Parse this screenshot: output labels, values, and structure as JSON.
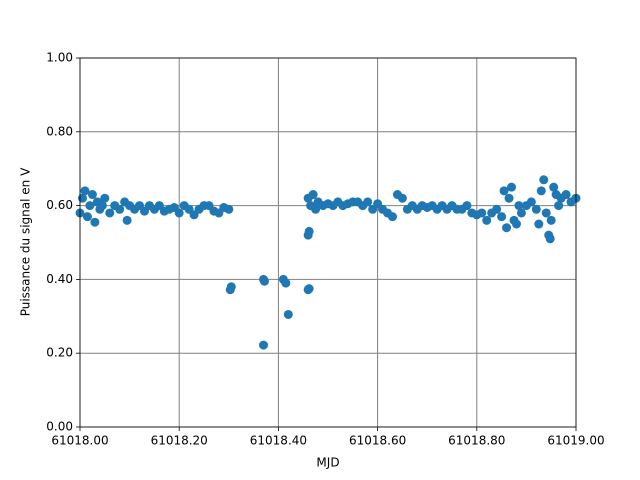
{
  "chart_data": {
    "type": "scatter",
    "x_label": "MJD",
    "y_label": "Puissance du signal en V",
    "color": "#1f77b4",
    "grid": true,
    "xlim": [
      61018.0,
      61019.0
    ],
    "xticks": [
      {
        "value": 61018.0,
        "label": "61018.00"
      },
      {
        "value": 61018.2,
        "label": "61018.20"
      },
      {
        "value": 61018.4,
        "label": "61018.40"
      },
      {
        "value": 61018.6,
        "label": "61018.60"
      },
      {
        "value": 61018.8,
        "label": "61018.80"
      },
      {
        "value": 61019.0,
        "label": "61019.00"
      }
    ],
    "ylim": [
      0,
      1
    ],
    "yticks": [
      {
        "value": 0,
        "label": "0.00"
      },
      {
        "value": 0.2,
        "label": "0.20"
      },
      {
        "value": 0.4,
        "label": "0.40"
      },
      {
        "value": 0.6,
        "label": "0.60"
      },
      {
        "value": 0.8,
        "label": "0.80"
      },
      {
        "value": 1,
        "label": "1.00"
      }
    ],
    "x": [
      61018.0,
      61018.005,
      61018.01,
      61018.015,
      61018.02,
      61018.025,
      61018.03,
      61018.035,
      61018.04,
      61018.045,
      61018.05,
      61018.06,
      61018.07,
      61018.08,
      61018.09,
      61018.095,
      61018.1,
      61018.11,
      61018.12,
      61018.13,
      61018.14,
      61018.15,
      61018.16,
      61018.17,
      61018.18,
      61018.19,
      61018.2,
      61018.21,
      61018.22,
      61018.23,
      61018.24,
      61018.25,
      61018.26,
      61018.27,
      61018.28,
      61018.29,
      61018.3,
      61018.305,
      61018.303,
      61018.37,
      61018.372,
      61018.37,
      61018.41,
      61018.415,
      61018.42,
      61018.46,
      61018.462,
      61018.46,
      61018.462,
      61018.46,
      61018.465,
      61018.47,
      61018.475,
      61018.48,
      61018.49,
      61018.5,
      61018.51,
      61018.52,
      61018.53,
      61018.54,
      61018.55,
      61018.56,
      61018.57,
      61018.58,
      61018.59,
      61018.6,
      61018.61,
      61018.62,
      61018.63,
      61018.64,
      61018.65,
      61018.66,
      61018.67,
      61018.68,
      61018.69,
      61018.7,
      61018.71,
      61018.72,
      61018.73,
      61018.74,
      61018.75,
      61018.76,
      61018.77,
      61018.78,
      61018.79,
      61018.8,
      61018.81,
      61018.82,
      61018.83,
      61018.84,
      61018.85,
      61018.855,
      61018.86,
      61018.865,
      61018.87,
      61018.875,
      61018.88,
      61018.885,
      61018.89,
      61018.9,
      61018.91,
      61018.92,
      61018.925,
      61018.93,
      61018.935,
      61018.94,
      61018.945,
      61018.948,
      61018.95,
      61018.955,
      61018.96,
      61018.965,
      61018.97,
      61018.98,
      61018.99,
      61019.0
    ],
    "y": [
      0.58,
      0.62,
      0.64,
      0.57,
      0.6,
      0.63,
      0.555,
      0.61,
      0.59,
      0.6,
      0.62,
      0.58,
      0.6,
      0.59,
      0.61,
      0.56,
      0.6,
      0.59,
      0.6,
      0.585,
      0.6,
      0.59,
      0.6,
      0.585,
      0.59,
      0.595,
      0.58,
      0.6,
      0.59,
      0.575,
      0.59,
      0.6,
      0.6,
      0.585,
      0.58,
      0.595,
      0.59,
      0.38,
      0.372,
      0.4,
      0.395,
      0.222,
      0.4,
      0.39,
      0.305,
      0.372,
      0.375,
      0.52,
      0.53,
      0.62,
      0.6,
      0.63,
      0.59,
      0.61,
      0.6,
      0.605,
      0.6,
      0.61,
      0.6,
      0.605,
      0.61,
      0.61,
      0.6,
      0.61,
      0.59,
      0.605,
      0.59,
      0.58,
      0.57,
      0.63,
      0.62,
      0.59,
      0.6,
      0.59,
      0.6,
      0.595,
      0.6,
      0.59,
      0.6,
      0.59,
      0.6,
      0.59,
      0.59,
      0.6,
      0.58,
      0.575,
      0.58,
      0.56,
      0.58,
      0.59,
      0.57,
      0.64,
      0.54,
      0.62,
      0.65,
      0.56,
      0.55,
      0.6,
      0.58,
      0.6,
      0.61,
      0.59,
      0.55,
      0.64,
      0.67,
      0.58,
      0.52,
      0.51,
      0.56,
      0.65,
      0.63,
      0.6,
      0.62,
      0.63,
      0.61,
      0.62
    ]
  }
}
